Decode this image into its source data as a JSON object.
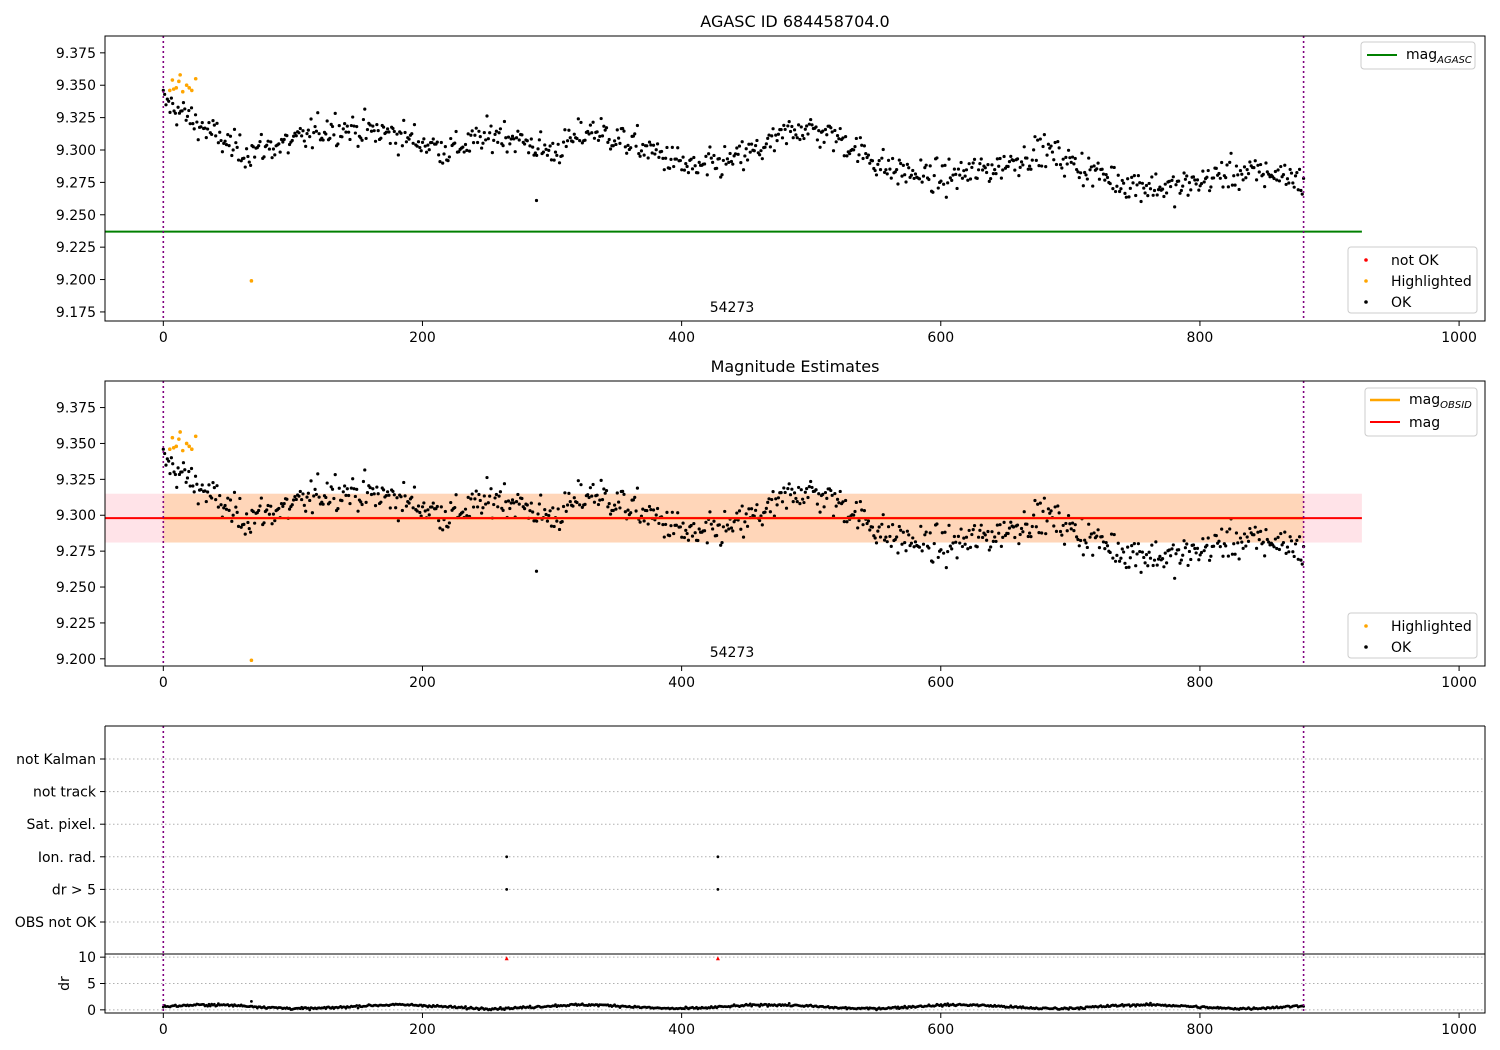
{
  "chart_data": [
    {
      "type": "scatter",
      "title": "AGASC ID 684458704.0",
      "xlim": [
        -45,
        1020
      ],
      "ylim": [
        9.168,
        9.388
      ],
      "x_ticks": [
        "0",
        "200",
        "400",
        "600",
        "800",
        "1000"
      ],
      "y_ticks": [
        "9.175",
        "9.200",
        "9.225",
        "9.250",
        "9.275",
        "9.300",
        "9.325",
        "9.350",
        "9.375"
      ],
      "annotation": "54273",
      "vlines": [
        0,
        880
      ],
      "mag_agasc_line": {
        "label": "mag",
        "subscript": "AGASC",
        "value": 9.237,
        "x_range": [
          -45,
          925
        ],
        "color": "#008000"
      },
      "legend_top": [
        {
          "label": "mag",
          "subscript": "AGASC",
          "color": "#008000"
        }
      ],
      "legend_bottom": [
        {
          "label": "not OK",
          "color": "#ff0000"
        },
        {
          "label": "Highlighted",
          "color": "#ffa500"
        },
        {
          "label": "OK",
          "color": "#000000"
        }
      ],
      "series": [
        {
          "name": "Highlighted",
          "color": "#ffa500",
          "x": [
            5,
            7,
            8,
            10,
            12,
            13,
            15,
            18,
            20,
            22,
            25,
            68
          ],
          "y": [
            9.346,
            9.354,
            9.347,
            9.348,
            9.353,
            9.358,
            9.345,
            9.35,
            9.348,
            9.346,
            9.355,
            9.199
          ]
        }
      ],
      "ok_trend": [
        [
          0,
          9.338
        ],
        [
          30,
          9.318
        ],
        [
          60,
          9.298
        ],
        [
          100,
          9.306
        ],
        [
          130,
          9.318
        ],
        [
          180,
          9.312
        ],
        [
          220,
          9.3
        ],
        [
          260,
          9.313
        ],
        [
          300,
          9.298
        ],
        [
          330,
          9.316
        ],
        [
          370,
          9.302
        ],
        [
          410,
          9.285
        ],
        [
          440,
          9.292
        ],
        [
          470,
          9.305
        ],
        [
          490,
          9.318
        ],
        [
          520,
          9.31
        ],
        [
          560,
          9.285
        ],
        [
          600,
          9.278
        ],
        [
          640,
          9.286
        ],
        [
          680,
          9.3
        ],
        [
          710,
          9.286
        ],
        [
          740,
          9.275
        ],
        [
          780,
          9.27
        ],
        [
          820,
          9.282
        ],
        [
          860,
          9.282
        ],
        [
          880,
          9.276
        ]
      ],
      "ok_count": 850,
      "ok_outliers": [
        [
          288,
          9.261
        ]
      ]
    },
    {
      "type": "scatter",
      "title": "Magnitude Estimates",
      "xlim": [
        -45,
        1020
      ],
      "ylim": [
        9.195,
        9.3935
      ],
      "x_ticks": [
        "0",
        "200",
        "400",
        "600",
        "800",
        "1000"
      ],
      "y_ticks": [
        "9.200",
        "9.225",
        "9.250",
        "9.275",
        "9.300",
        "9.325",
        "9.350",
        "9.375"
      ],
      "annotation": "54273",
      "vlines": [
        0,
        880
      ],
      "mag_line": {
        "label": "mag",
        "value": 9.298,
        "band": [
          9.281,
          9.315
        ],
        "x_range": [
          -45,
          925
        ],
        "color": "#ff0000",
        "band_color": "#ffc0cb"
      },
      "mag_obsid_band": {
        "label": "mag",
        "subscript": "OBSID",
        "value": 9.298,
        "band": [
          9.281,
          9.315
        ],
        "x_range": [
          0,
          880
        ],
        "color": "#ffa500"
      },
      "legend_top": [
        {
          "label": "mag",
          "subscript": "OBSID",
          "color": "#ffa500"
        },
        {
          "label": "mag",
          "color": "#ff0000"
        }
      ],
      "legend_bottom": [
        {
          "label": "Highlighted",
          "color": "#ffa500"
        },
        {
          "label": "OK",
          "color": "#000000"
        }
      ]
    },
    {
      "type": "scatter",
      "title": "",
      "flags": [
        "not Kalman",
        "not track",
        "Sat. pixel.",
        "Ion. rad.",
        "dr > 5",
        "OBS not OK"
      ],
      "flag_points": [
        {
          "flag": "Ion. rad.",
          "x": [
            265,
            428
          ]
        },
        {
          "flag": "dr > 5",
          "x": [
            265,
            428
          ]
        }
      ],
      "vlines": [
        0,
        880
      ]
    },
    {
      "type": "scatter",
      "ylabel": "dr",
      "xlim": [
        -45,
        1020
      ],
      "ylim": [
        -0.6,
        10.6
      ],
      "x_ticks": [
        "0",
        "200",
        "400",
        "600",
        "800",
        "1000"
      ],
      "y_ticks": [
        "0",
        "5",
        "10"
      ],
      "red_points": {
        "color": "#ff0000",
        "x": [
          265,
          428
        ],
        "y": [
          9.8,
          9.8
        ]
      },
      "dr_mean": 0.6,
      "vlines": [
        0,
        880
      ]
    }
  ]
}
